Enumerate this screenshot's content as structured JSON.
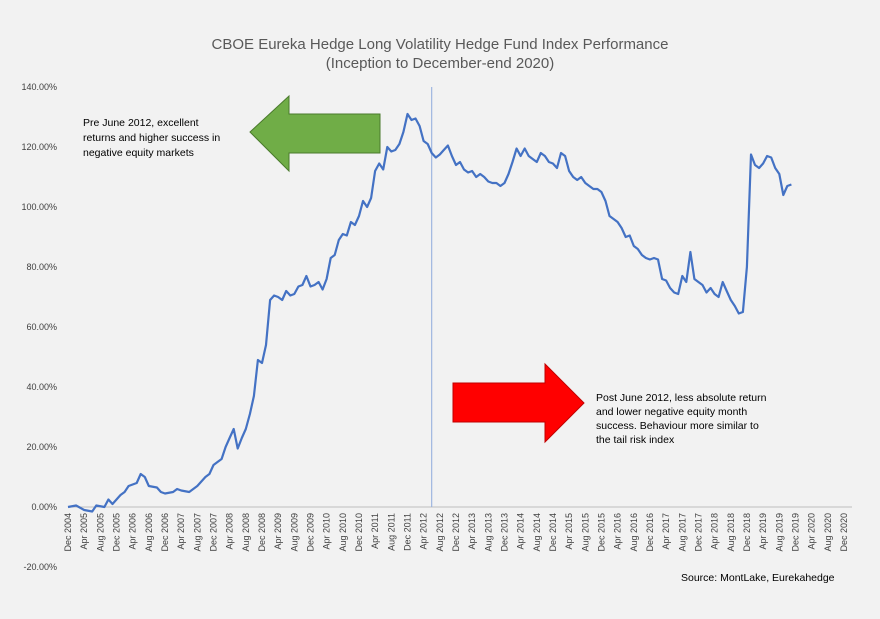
{
  "chart_data": {
    "type": "line",
    "title_lines": [
      "CBOE Eureka Hedge Long Volatility Hedge Fund Index Performance",
      "(Inception to December-end 2020)"
    ],
    "y_tick_labels": [
      "140.00%",
      "120.00%",
      "100.00%",
      "80.00%",
      "60.00%",
      "40.00%",
      "20.00%",
      "0.00%",
      "-20.00%"
    ],
    "y_tick_values": [
      140,
      120,
      100,
      80,
      60,
      40,
      20,
      0,
      -20
    ],
    "ylim": [
      -20,
      140
    ],
    "x_tick_labels": [
      "Dec 2004",
      "Apr 2005",
      "Aug 2005",
      "Dec 2005",
      "Apr 2006",
      "Aug 2006",
      "Dec 2006",
      "Apr 2007",
      "Aug 2007",
      "Dec 2007",
      "Apr 2008",
      "Aug 2008",
      "Dec 2008",
      "Apr 2009",
      "Aug 2009",
      "Dec 2009",
      "Apr 2010",
      "Aug 2010",
      "Dec 2010",
      "Apr 2011",
      "Aug 2011",
      "Dec 2011",
      "Apr 2012",
      "Aug 2012",
      "Dec 2012",
      "Apr 2013",
      "Aug 2013",
      "Dec 2013",
      "Apr 2014",
      "Aug 2014",
      "Dec 2014",
      "Apr 2015",
      "Aug 2015",
      "Dec 2015",
      "Apr 2016",
      "Aug 2016",
      "Dec 2016",
      "Apr 2017",
      "Aug 2017",
      "Dec 2017",
      "Apr 2018",
      "Aug 2018",
      "Dec 2018",
      "Apr 2019",
      "Aug 2019",
      "Dec 2019",
      "Apr 2020",
      "Aug 2020",
      "Dec 2020"
    ],
    "x_tick_months": [
      0,
      4,
      8,
      12,
      16,
      20,
      24,
      28,
      32,
      36,
      40,
      44,
      48,
      52,
      56,
      60,
      64,
      68,
      72,
      76,
      80,
      84,
      88,
      92,
      96,
      100,
      104,
      108,
      112,
      116,
      120,
      124,
      128,
      132,
      136,
      140,
      144,
      148,
      152,
      156,
      160,
      164,
      168,
      172,
      176,
      180,
      184,
      188,
      192
    ],
    "x_range_months": [
      0,
      194
    ],
    "grid": false,
    "legend": "none",
    "vertical_marker_month": 90,
    "series": [
      {
        "points": [
          [
            0,
            0
          ],
          [
            2,
            0.5
          ],
          [
            4,
            -1
          ],
          [
            6,
            -1.5
          ],
          [
            7,
            0.5
          ],
          [
            9,
            0
          ],
          [
            10,
            2.5
          ],
          [
            11,
            1
          ],
          [
            13,
            4
          ],
          [
            14,
            5
          ],
          [
            15,
            7
          ],
          [
            17,
            8
          ],
          [
            18,
            11
          ],
          [
            19,
            10
          ],
          [
            20,
            7
          ],
          [
            22,
            6.5
          ],
          [
            23,
            5
          ],
          [
            24,
            4.5
          ],
          [
            26,
            5
          ],
          [
            27,
            6
          ],
          [
            28,
            5.5
          ],
          [
            30,
            5
          ],
          [
            32,
            7
          ],
          [
            34,
            10
          ],
          [
            35,
            11
          ],
          [
            36,
            14
          ],
          [
            37,
            15
          ],
          [
            38,
            16
          ],
          [
            39,
            20
          ],
          [
            40,
            23
          ],
          [
            41,
            26
          ],
          [
            42,
            19.5
          ],
          [
            43,
            23
          ],
          [
            44,
            26
          ],
          [
            45,
            31
          ],
          [
            46,
            37
          ],
          [
            47,
            49
          ],
          [
            48,
            48
          ],
          [
            49,
            54
          ],
          [
            50,
            69
          ],
          [
            51,
            70.5
          ],
          [
            52,
            70
          ],
          [
            53,
            69
          ],
          [
            54,
            72
          ],
          [
            55,
            70.5
          ],
          [
            56,
            71
          ],
          [
            57,
            73.5
          ],
          [
            58,
            74
          ],
          [
            59,
            77
          ],
          [
            60,
            73.5
          ],
          [
            61,
            74
          ],
          [
            62,
            75
          ],
          [
            63,
            72.5
          ],
          [
            64,
            76
          ],
          [
            65,
            83
          ],
          [
            66,
            84
          ],
          [
            67,
            89
          ],
          [
            68,
            91
          ],
          [
            69,
            90.5
          ],
          [
            70,
            95
          ],
          [
            71,
            94
          ],
          [
            72,
            97
          ],
          [
            73,
            102
          ],
          [
            74,
            100
          ],
          [
            75,
            103
          ],
          [
            76,
            112
          ],
          [
            77,
            114.5
          ],
          [
            78,
            112.5
          ],
          [
            79,
            120
          ],
          [
            80,
            118.5
          ],
          [
            81,
            119
          ],
          [
            82,
            121
          ],
          [
            83,
            125
          ],
          [
            84,
            131
          ],
          [
            85,
            129
          ],
          [
            86,
            129.5
          ],
          [
            87,
            127
          ],
          [
            88,
            122
          ],
          [
            89,
            121
          ],
          [
            90,
            118
          ],
          [
            91,
            116.5
          ],
          [
            92,
            117.5
          ],
          [
            93,
            119
          ],
          [
            94,
            120.5
          ],
          [
            95,
            117
          ],
          [
            96,
            114
          ],
          [
            97,
            115
          ],
          [
            98,
            112.5
          ],
          [
            99,
            111.5
          ],
          [
            100,
            112
          ],
          [
            101,
            110
          ],
          [
            102,
            111
          ],
          [
            103,
            110
          ],
          [
            104,
            108.5
          ],
          [
            105,
            108
          ],
          [
            106,
            108
          ],
          [
            107,
            107
          ],
          [
            108,
            108
          ],
          [
            109,
            111
          ],
          [
            110,
            115
          ],
          [
            111,
            119.5
          ],
          [
            112,
            117
          ],
          [
            113,
            119.5
          ],
          [
            114,
            117
          ],
          [
            115,
            116
          ],
          [
            116,
            115
          ],
          [
            117,
            118
          ],
          [
            118,
            117
          ],
          [
            119,
            115
          ],
          [
            120,
            114.5
          ],
          [
            121,
            113
          ],
          [
            122,
            118
          ],
          [
            123,
            117
          ],
          [
            124,
            112
          ],
          [
            125,
            110
          ],
          [
            126,
            109
          ],
          [
            127,
            110
          ],
          [
            128,
            108
          ],
          [
            129,
            107
          ],
          [
            130,
            106
          ],
          [
            131,
            106
          ],
          [
            132,
            105
          ],
          [
            133,
            102
          ],
          [
            134,
            97
          ],
          [
            135,
            96
          ],
          [
            136,
            95
          ],
          [
            137,
            93
          ],
          [
            138,
            90
          ],
          [
            139,
            90.5
          ],
          [
            140,
            87
          ],
          [
            141,
            86
          ],
          [
            142,
            84
          ],
          [
            143,
            83
          ],
          [
            144,
            82.5
          ],
          [
            145,
            83
          ],
          [
            146,
            82.5
          ],
          [
            147,
            76
          ],
          [
            148,
            75.5
          ],
          [
            149,
            73
          ],
          [
            150,
            71.5
          ],
          [
            151,
            71
          ],
          [
            152,
            77
          ],
          [
            153,
            75
          ],
          [
            154,
            85
          ],
          [
            155,
            76
          ],
          [
            156,
            75
          ],
          [
            157,
            74
          ],
          [
            158,
            71.5
          ],
          [
            159,
            73
          ],
          [
            160,
            71
          ],
          [
            161,
            70
          ],
          [
            162,
            75
          ],
          [
            163,
            72
          ],
          [
            164,
            69
          ],
          [
            165,
            67
          ],
          [
            166,
            64.5
          ],
          [
            167,
            65
          ],
          [
            168,
            80
          ],
          [
            169,
            117.5
          ],
          [
            170,
            114
          ],
          [
            171,
            113
          ],
          [
            172,
            114.5
          ],
          [
            173,
            117
          ],
          [
            174,
            116.5
          ],
          [
            175,
            113
          ],
          [
            176,
            111
          ],
          [
            177,
            104
          ],
          [
            178,
            107
          ],
          [
            179,
            107.5
          ]
        ]
      }
    ],
    "annotations": [
      {
        "lines": [
          "Pre June 2012, excellent",
          "returns and higher success in",
          "negative equity markets"
        ],
        "arrow": "left",
        "color": "#70ad47"
      },
      {
        "lines": [
          "Post June 2012, less absolute return",
          "and lower negative equity month",
          "success. Behaviour more similar to",
          "the tail risk index"
        ],
        "arrow": "right",
        "color": "#ff0000"
      }
    ],
    "source": "Source: MontLake, Eurekahedge",
    "line_color": "#4472c4",
    "marker_line_color": "#8faadc"
  }
}
